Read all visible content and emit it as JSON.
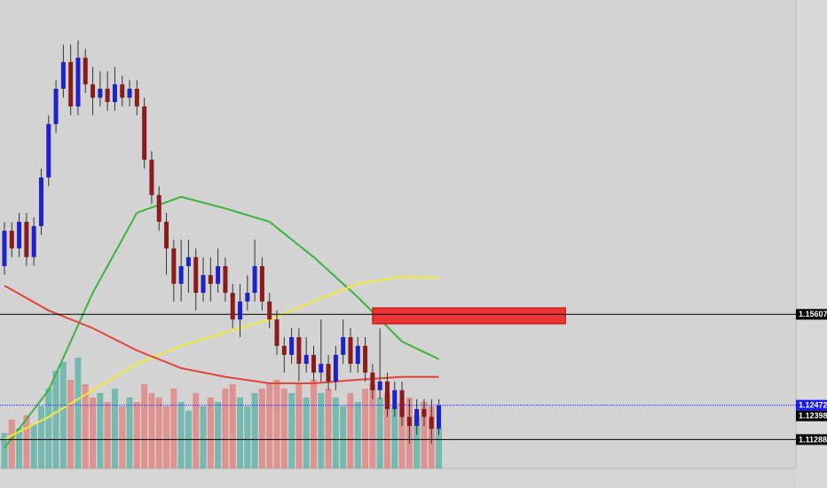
{
  "chart_data": {
    "type": "candlestick",
    "xlim": [
      -0.6,
      107.5
    ],
    "ylim": [
      1.1029,
      1.2645
    ],
    "up_color": "#1e22c8",
    "down_color": "#8a1c1c",
    "open": [
      1.1727,
      1.1849,
      1.1788,
      1.188,
      1.1758,
      1.1865,
      1.2033,
      1.2217,
      1.2339,
      1.2431,
      1.2278,
      1.2446,
      1.2354,
      1.2308,
      1.2339,
      1.2293,
      1.2354,
      1.2308,
      1.2339,
      1.2278,
      1.2094,
      1.1972,
      1.188,
      1.1788,
      1.1666,
      1.1727,
      1.1758,
      1.1635,
      1.1696,
      1.1666,
      1.1727,
      1.1635,
      1.1543,
      1.1605,
      1.1635,
      1.1727,
      1.1605,
      1.1543,
      1.1452,
      1.1421,
      1.1482,
      1.139,
      1.1421,
      1.136,
      1.139,
      1.1329,
      1.1421,
      1.1482,
      1.139,
      1.1452,
      1.136,
      1.1299,
      1.1329,
      1.1234,
      1.1299,
      1.1207,
      1.1176,
      1.1234,
      1.1207,
      1.1166
    ],
    "high": [
      1.1879,
      1.1879,
      1.191,
      1.191,
      1.1895,
      1.2063,
      1.2247,
      1.2369,
      1.2491,
      1.2491,
      1.2506,
      1.2476,
      1.2414,
      1.2399,
      1.2399,
      1.2414,
      1.2384,
      1.2369,
      1.2369,
      1.2308,
      1.2124,
      1.2002,
      1.191,
      1.1818,
      1.1818,
      1.1818,
      1.1788,
      1.1757,
      1.1757,
      1.1788,
      1.1757,
      1.1665,
      1.1665,
      1.1696,
      1.1818,
      1.1757,
      1.1635,
      1.1574,
      1.1482,
      1.1513,
      1.1513,
      1.1482,
      1.1452,
      1.1543,
      1.1421,
      1.1452,
      1.1543,
      1.1513,
      1.1482,
      1.1482,
      1.139,
      1.1513,
      1.136,
      1.1329,
      1.1329,
      1.1268,
      1.1268,
      1.1268,
      1.1268,
      1.1268
    ],
    "low": [
      1.1697,
      1.1758,
      1.1758,
      1.1728,
      1.1728,
      1.1835,
      1.2003,
      1.2187,
      1.2309,
      1.2248,
      1.2248,
      1.2324,
      1.2248,
      1.2278,
      1.2263,
      1.2263,
      1.2278,
      1.2278,
      1.2248,
      1.2064,
      1.1942,
      1.185,
      1.1697,
      1.1605,
      1.1605,
      1.1635,
      1.1574,
      1.1605,
      1.1605,
      1.1635,
      1.1605,
      1.1513,
      1.1482,
      1.1574,
      1.1605,
      1.1574,
      1.1513,
      1.1421,
      1.136,
      1.139,
      1.1329,
      1.136,
      1.1329,
      1.1329,
      1.1299,
      1.1299,
      1.139,
      1.136,
      1.136,
      1.1329,
      1.1268,
      1.1268,
      1.1207,
      1.1207,
      1.1176,
      1.1115,
      1.1146,
      1.1176,
      1.1115,
      1.1146
    ],
    "close": [
      1.1849,
      1.1788,
      1.188,
      1.1758,
      1.1865,
      1.2033,
      1.2217,
      1.2339,
      1.2431,
      1.2278,
      1.2446,
      1.2354,
      1.2308,
      1.2339,
      1.2293,
      1.2354,
      1.2308,
      1.2339,
      1.2278,
      1.2094,
      1.1972,
      1.188,
      1.1788,
      1.1666,
      1.1727,
      1.1758,
      1.1635,
      1.1696,
      1.1666,
      1.1727,
      1.1635,
      1.1543,
      1.1605,
      1.1635,
      1.1727,
      1.1605,
      1.1543,
      1.1452,
      1.1421,
      1.1482,
      1.139,
      1.1421,
      1.136,
      1.139,
      1.1329,
      1.1421,
      1.1482,
      1.139,
      1.1452,
      1.136,
      1.1299,
      1.1329,
      1.1234,
      1.1299,
      1.1207,
      1.1176,
      1.1234,
      1.1207,
      1.1166,
      1.1247
    ],
    "volume": [
      40,
      55,
      45,
      60,
      50,
      70,
      90,
      110,
      120,
      100,
      125,
      95,
      80,
      85,
      75,
      90,
      70,
      80,
      75,
      95,
      85,
      80,
      70,
      90,
      75,
      65,
      85,
      70,
      80,
      75,
      90,
      95,
      80,
      70,
      85,
      90,
      95,
      100,
      90,
      85,
      95,
      80,
      100,
      85,
      90,
      80,
      70,
      85,
      75,
      90,
      95,
      80,
      85,
      70,
      75,
      80,
      60,
      75,
      70,
      45
    ],
    "volume_colors": [
      "#5fb3a8",
      "#e2837f"
    ],
    "moving_averages": [
      {
        "color": "#3db33d",
        "x": [
          0,
          6,
          12,
          18,
          24,
          30,
          36,
          42,
          48,
          54,
          59
        ],
        "values": [
          1.11,
          1.1299,
          1.1635,
          1.1911,
          1.1966,
          1.1926,
          1.188,
          1.1758,
          1.162,
          1.1467,
          1.1406
        ]
      },
      {
        "color": "#f2ea3a",
        "x": [
          0,
          6,
          12,
          18,
          24,
          30,
          36,
          42,
          48,
          54,
          59
        ],
        "values": [
          1.113,
          1.1207,
          1.1299,
          1.139,
          1.1452,
          1.1498,
          1.1543,
          1.1605,
          1.1666,
          1.169,
          1.1687
        ]
      },
      {
        "color": "#e2433a",
        "x": [
          0,
          6,
          12,
          18,
          24,
          30,
          36,
          42,
          48,
          54,
          59
        ],
        "values": [
          1.166,
          1.1574,
          1.1513,
          1.1436,
          1.1375,
          1.1345,
          1.1323,
          1.1323,
          1.1335,
          1.1345,
          1.1345
        ]
      }
    ],
    "zone": {
      "start": 50,
      "end": 76.2,
      "high": 1.1583,
      "low": 1.1528,
      "color": "#ee3535"
    },
    "price_lines": [
      {
        "value": 1.15607,
        "color": "#000000",
        "style": "solid"
      },
      {
        "value": 1.12472,
        "color": "#1a1aff",
        "style": "dotted"
      },
      {
        "value": 1.12398,
        "color": "#000000",
        "style": "none"
      },
      {
        "value": 1.11288,
        "color": "#000000",
        "style": "solid"
      }
    ]
  }
}
